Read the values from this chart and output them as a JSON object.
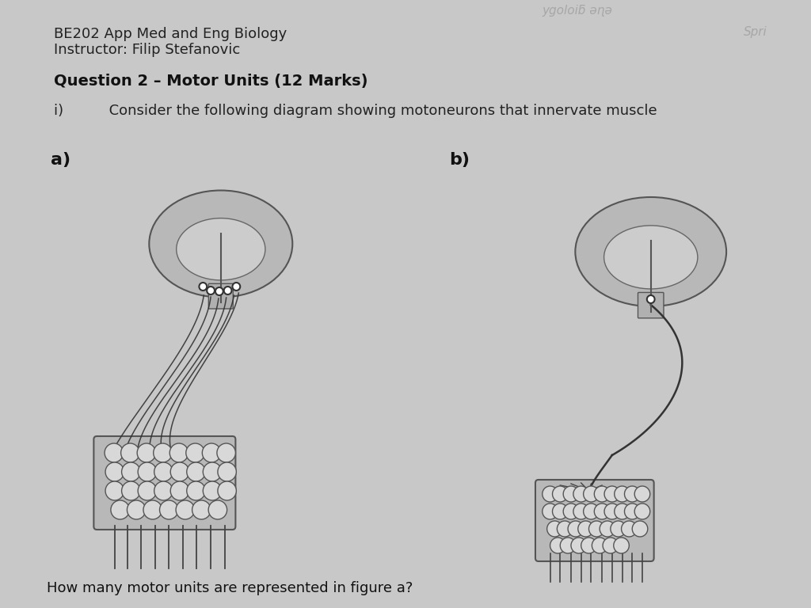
{
  "bg_color": "#c8c8c8",
  "title_line1": "BE202 App Med and Eng Biology",
  "title_line2": "Instructor: Filip Stefanovic",
  "question": "Question 2 – Motor Units (12 Marks)",
  "subq": "i)          Consider the following diagram showing motoneurons that innervate muscle",
  "label_a": "a)",
  "label_b": "b)",
  "bottom_text": "How many motor units are represented in figure a?",
  "watermark_top": "ygoloiƃ əɳə",
  "watermark_top2": "Spri",
  "fig_color": "#555555",
  "muscle_color": "#888888",
  "neuron_color": "#aaaaaa"
}
